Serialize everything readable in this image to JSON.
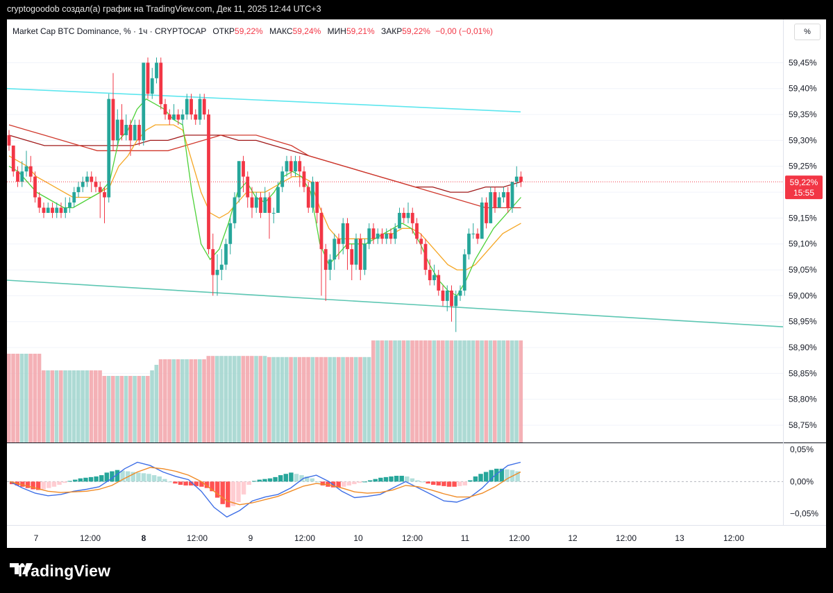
{
  "attribution": "cryptogoodob создал(а) график на TradingView.com, Дек 11, 2025 12:44 UTC+3",
  "legend": {
    "symbol": "Market Cap BTC Dominance, % · 1ч · CRYPTOCAP",
    "open_label": "ОТКР",
    "open": "59,22%",
    "high_label": "МАКС",
    "high": "59,24%",
    "low_label": "МИН",
    "low": "59,21%",
    "close_label": "ЗАКР",
    "close": "59,22%",
    "change": "−0,00 (−0,01%)"
  },
  "scale_button": "%",
  "price_tag": {
    "value": "59,22%",
    "countdown": "15:55"
  },
  "brand": "TradingView",
  "colors": {
    "up": "#26a69a",
    "down": "#f23645",
    "price_line": "#f23645",
    "channel_upper": "#5ce6ee",
    "channel_lower": "#5cc6b2",
    "ma_fast": "#4cd137",
    "ma_mid": "#f5a623",
    "ma_slow_1": "#d0382c",
    "ma_slow_2": "#a01818",
    "macd": "#3d6ee6",
    "signal": "#f08a24"
  },
  "chart_data": {
    "type": "candlestick",
    "timeframe": "1ч",
    "unit": "%",
    "ylim": [
      58.73,
      59.48
    ],
    "y_ticks": [
      "59,45%",
      "59,40%",
      "59,35%",
      "59,30%",
      "59,25%",
      "59,20%",
      "59,15%",
      "59,10%",
      "59,05%",
      "59,00%",
      "58,95%",
      "58,90%",
      "58,85%",
      "58,80%",
      "58,75%"
    ],
    "x_ticks": [
      "7",
      "12:00",
      "8",
      "12:00",
      "9",
      "12:00",
      "10",
      "12:00",
      "11",
      "12:00",
      "12",
      "12:00",
      "13",
      "12:00"
    ],
    "last_price": 59.22,
    "candles": [
      [
        59.31,
        59.29,
        59.32,
        59.28
      ],
      [
        59.29,
        59.24,
        59.29,
        59.23
      ],
      [
        59.24,
        59.22,
        59.25,
        59.21
      ],
      [
        59.22,
        59.24,
        59.26,
        59.21
      ],
      [
        59.24,
        59.25,
        59.28,
        59.23
      ],
      [
        59.25,
        59.23,
        59.27,
        59.22
      ],
      [
        59.23,
        59.19,
        59.24,
        59.18
      ],
      [
        59.19,
        59.17,
        59.2,
        59.16
      ],
      [
        59.17,
        59.16,
        59.18,
        59.15
      ],
      [
        59.16,
        59.17,
        59.18,
        59.16
      ],
      [
        59.17,
        59.16,
        59.18,
        59.15
      ],
      [
        59.16,
        59.17,
        59.18,
        59.15
      ],
      [
        59.17,
        59.16,
        59.18,
        59.15
      ],
      [
        59.16,
        59.17,
        59.19,
        59.15
      ],
      [
        59.17,
        59.18,
        59.19,
        59.16
      ],
      [
        59.18,
        59.2,
        59.21,
        59.17
      ],
      [
        59.2,
        59.21,
        59.22,
        59.19
      ],
      [
        59.21,
        59.22,
        59.23,
        59.2
      ],
      [
        59.22,
        59.23,
        59.24,
        59.21
      ],
      [
        59.23,
        59.22,
        59.24,
        59.2
      ],
      [
        59.22,
        59.21,
        59.23,
        59.2
      ],
      [
        59.21,
        59.2,
        59.22,
        59.15
      ],
      [
        59.2,
        59.19,
        59.21,
        59.14
      ],
      [
        59.19,
        59.38,
        59.39,
        59.18
      ],
      [
        59.38,
        59.3,
        59.43,
        59.28
      ],
      [
        59.3,
        59.34,
        59.36,
        59.29
      ],
      [
        59.34,
        59.31,
        59.37,
        59.3
      ],
      [
        59.31,
        59.33,
        59.35,
        59.3
      ],
      [
        59.33,
        59.3,
        59.34,
        59.27
      ],
      [
        59.3,
        59.33,
        59.34,
        59.3
      ],
      [
        59.33,
        59.3,
        59.34,
        59.29
      ],
      [
        59.3,
        59.45,
        59.45,
        59.29
      ],
      [
        59.45,
        59.39,
        59.46,
        59.38
      ],
      [
        59.39,
        59.42,
        59.44,
        59.38
      ],
      [
        59.42,
        59.45,
        59.46,
        59.41
      ],
      [
        59.45,
        59.37,
        59.46,
        59.36
      ],
      [
        59.37,
        59.35,
        59.38,
        59.34
      ],
      [
        59.35,
        59.34,
        59.36,
        59.33
      ],
      [
        59.34,
        59.35,
        59.37,
        59.34
      ],
      [
        59.35,
        59.34,
        59.36,
        59.33
      ],
      [
        59.34,
        59.35,
        59.36,
        59.33
      ],
      [
        59.35,
        59.38,
        59.39,
        59.34
      ],
      [
        59.38,
        59.35,
        59.39,
        59.34
      ],
      [
        59.35,
        59.34,
        59.36,
        59.33
      ],
      [
        59.34,
        59.38,
        59.39,
        59.33
      ],
      [
        59.38,
        59.35,
        59.39,
        59.34
      ],
      [
        59.35,
        59.09,
        59.36,
        59.08
      ],
      [
        59.09,
        59.04,
        59.12,
        59.0
      ],
      [
        59.04,
        59.05,
        59.08,
        59.0
      ],
      [
        59.05,
        59.06,
        59.09,
        59.03
      ],
      [
        59.06,
        59.1,
        59.11,
        59.05
      ],
      [
        59.1,
        59.14,
        59.15,
        59.08
      ],
      [
        59.14,
        59.19,
        59.2,
        59.13
      ],
      [
        59.19,
        59.26,
        59.26,
        59.18
      ],
      [
        59.26,
        59.23,
        59.27,
        59.2
      ],
      [
        59.23,
        59.19,
        59.24,
        59.17
      ],
      [
        59.19,
        59.17,
        59.21,
        59.15
      ],
      [
        59.17,
        59.19,
        59.2,
        59.16
      ],
      [
        59.19,
        59.16,
        59.2,
        59.15
      ],
      [
        59.16,
        59.19,
        59.21,
        59.16
      ],
      [
        59.19,
        59.16,
        59.2,
        59.11
      ],
      [
        59.16,
        59.16,
        59.17,
        59.14
      ],
      [
        59.16,
        59.21,
        59.22,
        59.16
      ],
      [
        59.21,
        59.24,
        59.25,
        59.2
      ],
      [
        59.24,
        59.26,
        59.27,
        59.23
      ],
      [
        59.26,
        59.24,
        59.27,
        59.23
      ],
      [
        59.24,
        59.26,
        59.27,
        59.23
      ],
      [
        59.26,
        59.24,
        59.27,
        59.21
      ],
      [
        59.24,
        59.21,
        59.25,
        59.2
      ],
      [
        59.21,
        59.17,
        59.22,
        59.16
      ],
      [
        59.17,
        59.22,
        59.23,
        59.16
      ],
      [
        59.22,
        59.16,
        59.22,
        59.14
      ],
      [
        59.16,
        59.09,
        59.17,
        59.0
      ],
      [
        59.09,
        59.05,
        59.1,
        58.99
      ],
      [
        59.05,
        59.07,
        59.08,
        59.03
      ],
      [
        59.07,
        59.11,
        59.12,
        59.05
      ],
      [
        59.11,
        59.1,
        59.12,
        59.07
      ],
      [
        59.1,
        59.14,
        59.15,
        59.08
      ],
      [
        59.14,
        59.09,
        59.15,
        59.05
      ],
      [
        59.09,
        59.06,
        59.1,
        59.03
      ],
      [
        59.06,
        59.11,
        59.12,
        59.05
      ],
      [
        59.11,
        59.05,
        59.12,
        59.03
      ],
      [
        59.05,
        59.1,
        59.11,
        59.04
      ],
      [
        59.1,
        59.13,
        59.14,
        59.09
      ],
      [
        59.13,
        59.11,
        59.14,
        59.1
      ],
      [
        59.11,
        59.12,
        59.13,
        59.1
      ],
      [
        59.12,
        59.11,
        59.13,
        59.1
      ],
      [
        59.11,
        59.12,
        59.13,
        59.1
      ],
      [
        59.12,
        59.11,
        59.13,
        59.1
      ],
      [
        59.11,
        59.13,
        59.14,
        59.1
      ],
      [
        59.13,
        59.16,
        59.17,
        59.13
      ],
      [
        59.16,
        59.15,
        59.17,
        59.14
      ],
      [
        59.15,
        59.16,
        59.18,
        59.14
      ],
      [
        59.16,
        59.14,
        59.17,
        59.12
      ],
      [
        59.14,
        59.11,
        59.15,
        59.1
      ],
      [
        59.11,
        59.1,
        59.12,
        59.08
      ],
      [
        59.1,
        59.05,
        59.11,
        59.04
      ],
      [
        59.05,
        59.03,
        59.07,
        59.02
      ],
      [
        59.03,
        59.04,
        59.06,
        59.02
      ],
      [
        59.04,
        59.01,
        59.05,
        59.0
      ],
      [
        59.01,
        58.99,
        59.02,
        58.98
      ],
      [
        58.99,
        59.01,
        59.02,
        58.97
      ],
      [
        59.01,
        58.98,
        59.02,
        58.95
      ],
      [
        58.98,
        59.0,
        59.01,
        58.93
      ],
      [
        59.0,
        59.01,
        59.02,
        58.99
      ],
      [
        59.01,
        59.08,
        59.09,
        59.0
      ],
      [
        59.08,
        59.12,
        59.13,
        59.07
      ],
      [
        59.12,
        59.12,
        59.14,
        59.11
      ],
      [
        59.12,
        59.11,
        59.13,
        59.1
      ],
      [
        59.11,
        59.18,
        59.19,
        59.11
      ],
      [
        59.18,
        59.14,
        59.19,
        59.13
      ],
      [
        59.14,
        59.2,
        59.21,
        59.14
      ],
      [
        59.2,
        59.17,
        59.21,
        59.16
      ],
      [
        59.17,
        59.19,
        59.2,
        59.17
      ],
      [
        59.19,
        59.2,
        59.21,
        59.18
      ],
      [
        59.2,
        59.17,
        59.21,
        59.16
      ],
      [
        59.17,
        59.22,
        59.22,
        59.16
      ],
      [
        59.22,
        59.23,
        59.25,
        59.21
      ],
      [
        59.23,
        59.22,
        59.24,
        59.21
      ]
    ],
    "volume_ratio": [
      0.8,
      0.8,
      0.8,
      0.8,
      0.8,
      0.8,
      0.8,
      0.8,
      0.65,
      0.65,
      0.65,
      0.65,
      0.65,
      0.65,
      0.65,
      0.65,
      0.65,
      0.65,
      0.65,
      0.65,
      0.65,
      0.65,
      0.6,
      0.6,
      0.6,
      0.6,
      0.6,
      0.6,
      0.6,
      0.6,
      0.6,
      0.6,
      0.6,
      0.65,
      0.7,
      0.75,
      0.75,
      0.75,
      0.75,
      0.75,
      0.75,
      0.75,
      0.75,
      0.75,
      0.75,
      0.75,
      0.78,
      0.78,
      0.78,
      0.78,
      0.78,
      0.78,
      0.78,
      0.78,
      0.78,
      0.78,
      0.78,
      0.78,
      0.78,
      0.78,
      0.77,
      0.77,
      0.77,
      0.77,
      0.77,
      0.77,
      0.77,
      0.77,
      0.77,
      0.77,
      0.77,
      0.77,
      0.77,
      0.77,
      0.77,
      0.77,
      0.77,
      0.77,
      0.77,
      0.77,
      0.77,
      0.77,
      0.77,
      0.77,
      0.92,
      0.92,
      0.92,
      0.92,
      0.92,
      0.92,
      0.92,
      0.92,
      0.92,
      0.92,
      0.92,
      0.92,
      0.92,
      0.92,
      0.92,
      0.92,
      0.92,
      0.92,
      0.92,
      0.92,
      0.92,
      0.92,
      0.92,
      0.92,
      0.92,
      0.92,
      0.92,
      0.92,
      0.92,
      0.92,
      0.92,
      0.92,
      0.92,
      0.92,
      0.92,
      0.92,
      0.92,
      0.92,
      0.92,
      0.92,
      0.92,
      0.92
    ],
    "channel": {
      "upper": [
        59.4,
        59.355
      ],
      "lower": [
        59.03,
        58.94
      ]
    },
    "moving_averages": {
      "fast": [
        59.25,
        59.24,
        59.22,
        59.2,
        59.19,
        59.18,
        59.17,
        59.17,
        59.18,
        59.19,
        59.2,
        59.22,
        59.3,
        59.32,
        59.36,
        59.38,
        59.37,
        59.36,
        59.34,
        59.33,
        59.2,
        59.1,
        59.07,
        59.09,
        59.14,
        59.2,
        59.22,
        59.19,
        59.18,
        59.2,
        59.23,
        59.24,
        59.23,
        59.2,
        59.1,
        59.06,
        59.08,
        59.1,
        59.1,
        59.1,
        59.11,
        59.12,
        59.13,
        59.14,
        59.13,
        59.1,
        59.06,
        59.03,
        59.01,
        59.0,
        59.03,
        59.07,
        59.1,
        59.13,
        59.15,
        59.17,
        59.19
      ],
      "mid": [
        59.27,
        59.26,
        59.25,
        59.23,
        59.22,
        59.21,
        59.2,
        59.19,
        59.19,
        59.19,
        59.2,
        59.21,
        59.25,
        59.27,
        59.3,
        59.32,
        59.33,
        59.33,
        59.33,
        59.32,
        59.26,
        59.2,
        59.16,
        59.15,
        59.16,
        59.18,
        59.2,
        59.2,
        59.2,
        59.21,
        59.22,
        59.23,
        59.23,
        59.22,
        59.17,
        59.13,
        59.11,
        59.11,
        59.11,
        59.11,
        59.11,
        59.12,
        59.12,
        59.13,
        59.13,
        59.12,
        59.1,
        59.08,
        59.06,
        59.05,
        59.05,
        59.06,
        59.08,
        59.1,
        59.12,
        59.13,
        59.14
      ],
      "slow1": [
        59.33,
        59.32,
        59.31,
        59.3,
        59.29,
        59.28,
        59.28,
        59.28,
        59.28,
        59.28,
        59.29,
        59.3,
        59.31,
        59.31,
        59.31,
        59.3,
        59.29,
        59.27,
        59.26,
        59.25,
        59.24,
        59.23,
        59.22,
        59.21,
        59.2,
        59.19,
        59.18,
        59.17,
        59.17,
        59.17
      ],
      "slow2": [
        59.31,
        59.3,
        59.29,
        59.29,
        59.29,
        59.29,
        59.29,
        59.29,
        59.3,
        59.3,
        59.31,
        59.31,
        59.31,
        59.3,
        59.3,
        59.29,
        59.28,
        59.27,
        59.26,
        59.25,
        59.24,
        59.23,
        59.22,
        59.21,
        59.21,
        59.2,
        59.2,
        59.21,
        59.21,
        59.22
      ]
    },
    "macd": {
      "y_ticks": [
        "0,05%",
        "0,00%",
        "−0,05%"
      ],
      "ylim": [
        -0.06,
        0.05
      ],
      "hist": [
        -0.004,
        -0.006,
        -0.008,
        -0.01,
        -0.012,
        -0.013,
        -0.012,
        -0.01,
        -0.008,
        -0.005,
        -0.002,
        0.001,
        0.003,
        0.005,
        0.006,
        0.007,
        0.008,
        0.01,
        0.014,
        0.016,
        0.018,
        0.017,
        0.016,
        0.015,
        0.014,
        0.013,
        0.012,
        0.01,
        0.008,
        0.004,
        0.0,
        -0.003,
        -0.005,
        -0.006,
        -0.006,
        -0.007,
        -0.008,
        -0.01,
        -0.015,
        -0.025,
        -0.035,
        -0.04,
        -0.038,
        -0.032,
        -0.02,
        -0.005,
        0.001,
        0.003,
        0.004,
        0.005,
        0.007,
        0.01,
        0.012,
        0.014,
        0.012,
        0.01,
        0.008,
        0.005,
        0.0,
        -0.006,
        -0.008,
        -0.009,
        -0.009,
        -0.008,
        -0.006,
        -0.004,
        -0.002,
        0.0,
        0.002,
        0.004,
        0.006,
        0.007,
        0.008,
        0.009,
        0.009,
        0.008,
        0.005,
        0.002,
        0.0,
        -0.003,
        -0.005,
        -0.006,
        -0.007,
        -0.008,
        -0.008,
        -0.007,
        -0.006,
        0.002,
        0.008,
        0.012,
        0.015,
        0.018,
        0.02,
        0.02,
        0.019,
        0.018,
        0.016
      ],
      "macd_line": [
        0.0,
        -0.01,
        -0.018,
        -0.022,
        -0.02,
        -0.015,
        -0.012,
        -0.008,
        0.005,
        0.02,
        0.03,
        0.025,
        0.015,
        0.008,
        0.003,
        -0.015,
        -0.04,
        -0.055,
        -0.045,
        -0.03,
        -0.024,
        -0.02,
        -0.01,
        0.005,
        0.01,
        0.0,
        -0.015,
        -0.025,
        -0.023,
        -0.02,
        -0.01,
        0.0,
        -0.01,
        -0.02,
        -0.03,
        -0.032,
        -0.025,
        -0.01,
        0.01,
        0.025,
        0.03
      ],
      "signal_line": [
        0.0,
        -0.005,
        -0.01,
        -0.015,
        -0.017,
        -0.016,
        -0.015,
        -0.012,
        -0.006,
        0.005,
        0.015,
        0.022,
        0.02,
        0.016,
        0.01,
        0.0,
        -0.015,
        -0.03,
        -0.036,
        -0.033,
        -0.028,
        -0.023,
        -0.015,
        -0.007,
        -0.003,
        -0.005,
        -0.01,
        -0.016,
        -0.018,
        -0.017,
        -0.013,
        -0.006,
        -0.008,
        -0.013,
        -0.019,
        -0.024,
        -0.024,
        -0.018,
        -0.008,
        0.005,
        0.015
      ]
    }
  }
}
